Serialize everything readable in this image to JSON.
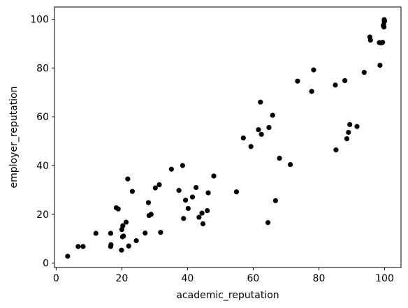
{
  "chart_data": {
    "type": "scatter",
    "xlabel": "academic_reputation",
    "ylabel": "employer_reputation",
    "xlim": [
      -0.5,
      105
    ],
    "ylim": [
      -1.8,
      105
    ],
    "xticks": [
      0,
      20,
      40,
      60,
      80,
      100
    ],
    "yticks": [
      0,
      20,
      40,
      60,
      80,
      100
    ],
    "grid": false,
    "marker_color": "#000000",
    "points": [
      [
        3.5,
        2.8
      ],
      [
        6.7,
        6.8
      ],
      [
        8.2,
        6.8
      ],
      [
        12.1,
        12.2
      ],
      [
        16.6,
        6.8
      ],
      [
        16.7,
        7.5
      ],
      [
        16.6,
        12.2
      ],
      [
        18.3,
        22.7
      ],
      [
        18.9,
        22.2
      ],
      [
        19.9,
        5.3
      ],
      [
        20.0,
        13.8
      ],
      [
        20.3,
        15.3
      ],
      [
        20.2,
        10.8
      ],
      [
        20.5,
        11.1
      ],
      [
        21.3,
        16.8
      ],
      [
        21.8,
        34.5
      ],
      [
        22.1,
        7.0
      ],
      [
        23.2,
        29.4
      ],
      [
        24.4,
        9.2
      ],
      [
        27.1,
        12.3
      ],
      [
        28.1,
        24.8
      ],
      [
        28.3,
        19.5
      ],
      [
        28.9,
        20.0
      ],
      [
        30.2,
        30.8
      ],
      [
        31.4,
        32.1
      ],
      [
        31.8,
        12.6
      ],
      [
        35.1,
        38.5
      ],
      [
        37.4,
        29.8
      ],
      [
        38.5,
        40.0
      ],
      [
        38.8,
        18.3
      ],
      [
        39.4,
        25.8
      ],
      [
        40.2,
        22.4
      ],
      [
        41.5,
        27.1
      ],
      [
        42.6,
        31.0
      ],
      [
        43.5,
        18.8
      ],
      [
        44.4,
        20.5
      ],
      [
        44.7,
        16.1
      ],
      [
        46.0,
        21.5
      ],
      [
        46.3,
        28.8
      ],
      [
        48.0,
        35.7
      ],
      [
        54.9,
        29.2
      ],
      [
        57.0,
        51.3
      ],
      [
        59.3,
        47.8
      ],
      [
        61.6,
        54.7
      ],
      [
        62.2,
        66.0
      ],
      [
        62.5,
        52.8
      ],
      [
        64.5,
        16.6
      ],
      [
        64.8,
        55.6
      ],
      [
        65.9,
        60.6
      ],
      [
        66.8,
        25.6
      ],
      [
        68.0,
        43.0
      ],
      [
        71.3,
        40.4
      ],
      [
        73.5,
        74.6
      ],
      [
        77.8,
        70.4
      ],
      [
        78.4,
        79.2
      ],
      [
        85.0,
        73.0
      ],
      [
        85.2,
        46.4
      ],
      [
        87.9,
        74.8
      ],
      [
        88.5,
        51.0
      ],
      [
        89.0,
        53.6
      ],
      [
        89.4,
        56.8
      ],
      [
        91.6,
        56.0
      ],
      [
        93.8,
        78.2
      ],
      [
        95.5,
        92.7
      ],
      [
        95.7,
        91.4
      ],
      [
        98.4,
        90.4
      ],
      [
        98.6,
        81.1
      ],
      [
        99.0,
        90.3
      ],
      [
        99.4,
        90.5
      ],
      [
        99.6,
        97.4
      ],
      [
        99.8,
        96.8
      ],
      [
        99.9,
        99.8
      ],
      [
        99.9,
        99.0
      ],
      [
        100.0,
        99.4
      ],
      [
        99.7,
        97.6
      ]
    ]
  }
}
